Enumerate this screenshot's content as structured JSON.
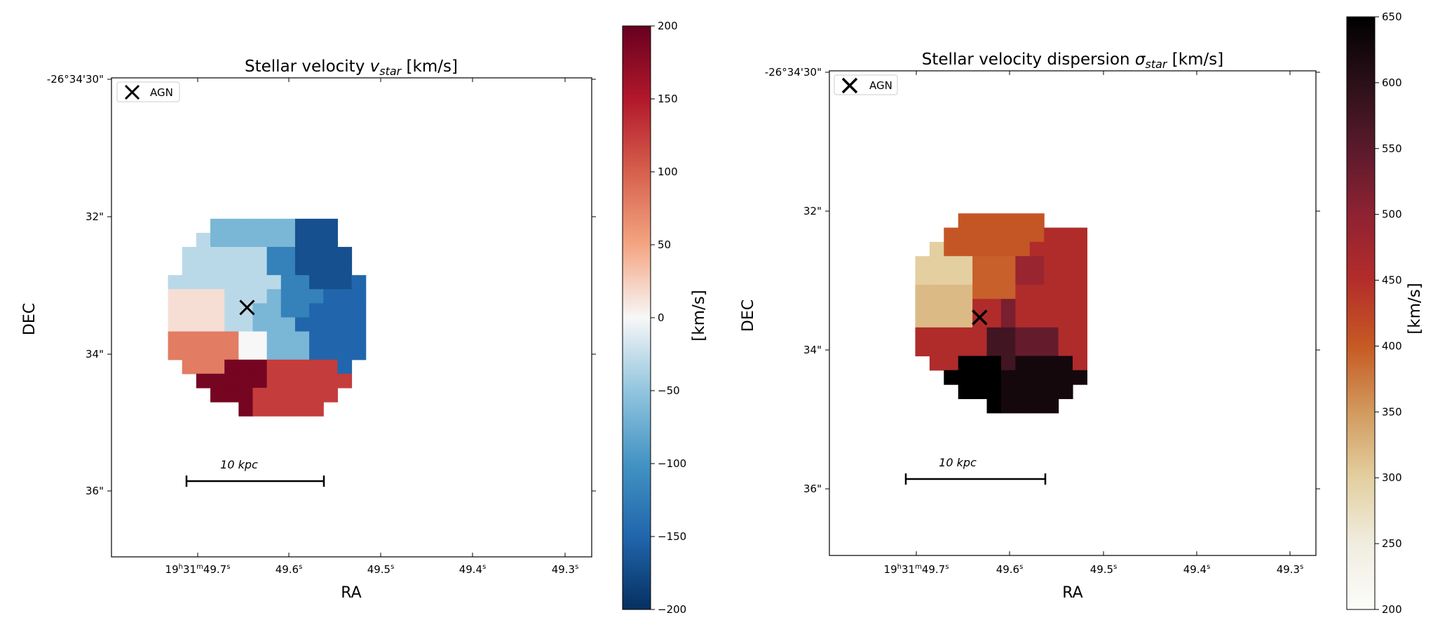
{
  "chart_data": [
    {
      "type": "heatmap",
      "title_prefix": "Stellar velocity ",
      "title_sym": "v",
      "title_sub": "star",
      "title_suffix": " [km/s]",
      "xlabel": "RA",
      "ylabel": "DEC",
      "xticks": [
        [
          "19",
          "h",
          "31",
          "m",
          "49.7",
          "s"
        ],
        [
          "49.6",
          "s"
        ],
        [
          "49.5",
          "s"
        ],
        [
          "49.4",
          "s"
        ],
        [
          "49.3",
          "s"
        ]
      ],
      "yticks": [
        "-26°34'30\"",
        "32\"",
        "34\"",
        "36\""
      ],
      "legend": "AGN",
      "scalebar_label": "10 kpc",
      "colorbar": {
        "label": "[km/s]",
        "range": [
          -200,
          200
        ],
        "ticks": [
          "200",
          "150",
          "100",
          "50",
          "0",
          "−50",
          "−100",
          "−150",
          "−200"
        ],
        "colormap": "RdBu_r"
      },
      "grid_x0": 4,
      "grid_y0": 9,
      "grid": [
        [
          null,
          null,
          null,
          null,
          null,
          null,
          null,
          null,
          null,
          null,
          null,
          null,
          null,
          null
        ],
        [
          null,
          null,
          null,
          -65,
          -65,
          -65,
          -65,
          -65,
          -65,
          -170,
          -170,
          -170,
          null,
          null
        ],
        [
          null,
          null,
          -30,
          -65,
          -65,
          -65,
          -65,
          -65,
          -65,
          -170,
          -170,
          -170,
          null,
          null
        ],
        [
          null,
          -30,
          -30,
          -30,
          -30,
          -30,
          -30,
          -120,
          -120,
          -170,
          -170,
          -170,
          -170,
          null
        ],
        [
          null,
          -30,
          -30,
          -30,
          -30,
          -30,
          -30,
          -120,
          -120,
          -170,
          -170,
          -170,
          -170,
          null
        ],
        [
          -30,
          -30,
          -30,
          -30,
          -30,
          -30,
          -30,
          -30,
          -120,
          -120,
          -170,
          -170,
          -170,
          -150
        ],
        [
          15,
          15,
          15,
          15,
          -30,
          -30,
          -30,
          -65,
          -120,
          -120,
          -120,
          -150,
          -150,
          -150
        ],
        [
          15,
          15,
          15,
          15,
          -30,
          -30,
          -65,
          -65,
          -120,
          -120,
          -150,
          -150,
          -150,
          -150
        ],
        [
          15,
          15,
          15,
          15,
          -30,
          -30,
          -65,
          -65,
          -65,
          -150,
          -150,
          -150,
          -150,
          -150
        ],
        [
          80,
          80,
          80,
          80,
          80,
          0,
          0,
          -65,
          -65,
          -65,
          -150,
          -150,
          -150,
          -150
        ],
        [
          80,
          80,
          80,
          80,
          80,
          0,
          0,
          -65,
          -65,
          -65,
          -150,
          -150,
          -150,
          -150
        ],
        [
          null,
          80,
          80,
          80,
          190,
          190,
          190,
          125,
          125,
          125,
          125,
          125,
          -150,
          null
        ],
        [
          null,
          null,
          190,
          190,
          190,
          190,
          190,
          125,
          125,
          125,
          125,
          125,
          125,
          null
        ],
        [
          null,
          null,
          null,
          190,
          190,
          190,
          125,
          125,
          125,
          125,
          125,
          125,
          null,
          null
        ],
        [
          null,
          null,
          null,
          null,
          null,
          190,
          125,
          125,
          125,
          125,
          125,
          null,
          null,
          null
        ]
      ],
      "agn": [
        5.6,
        7.3
      ]
    },
    {
      "type": "heatmap",
      "title_prefix": "Stellar velocity dispersion ",
      "title_sym": "σ",
      "title_sub": "star",
      "title_suffix": " [km/s]",
      "xlabel": "RA",
      "ylabel": "DEC",
      "xticks": [
        [
          "19",
          "h",
          "31",
          "m",
          "49.7",
          "s"
        ],
        [
          "49.6",
          "s"
        ],
        [
          "49.5",
          "s"
        ],
        [
          "49.4",
          "s"
        ],
        [
          "49.3",
          "s"
        ]
      ],
      "yticks": [
        "-26°34'30\"",
        "32\"",
        "34\"",
        "36\""
      ],
      "legend": "AGN",
      "scalebar_label": "10 kpc",
      "colorbar": {
        "label": "[km/s]",
        "range": [
          200,
          650
        ],
        "ticks": [
          "650",
          "600",
          "550",
          "500",
          "450",
          "400",
          "350",
          "300",
          "250",
          "200"
        ],
        "colormap": "gist_heat_r-like"
      },
      "grid_x0": 4,
      "grid_y0": 9,
      "grid": [
        [
          null,
          null,
          null,
          null,
          null,
          null,
          null,
          null,
          null,
          null,
          null,
          null,
          null,
          null
        ],
        [
          null,
          null,
          null,
          null,
          null,
          405,
          405,
          405,
          405,
          405,
          405,
          null,
          null,
          null
        ],
        [
          null,
          null,
          null,
          null,
          405,
          405,
          405,
          405,
          405,
          405,
          405,
          455,
          455,
          455
        ],
        [
          null,
          null,
          null,
          300,
          405,
          405,
          405,
          405,
          405,
          405,
          455,
          455,
          455,
          455
        ],
        [
          null,
          null,
          300,
          300,
          300,
          300,
          395,
          395,
          395,
          485,
          485,
          455,
          455,
          455
        ],
        [
          null,
          null,
          300,
          300,
          300,
          300,
          395,
          395,
          395,
          485,
          485,
          455,
          455,
          455
        ],
        [
          null,
          null,
          320,
          320,
          320,
          320,
          395,
          395,
          395,
          455,
          455,
          455,
          455,
          455
        ],
        [
          null,
          null,
          320,
          320,
          320,
          320,
          455,
          455,
          520,
          455,
          455,
          455,
          455,
          455
        ],
        [
          null,
          null,
          320,
          320,
          320,
          320,
          455,
          455,
          520,
          455,
          455,
          455,
          455,
          455
        ],
        [
          null,
          null,
          455,
          455,
          455,
          455,
          455,
          575,
          575,
          540,
          540,
          540,
          455,
          455
        ],
        [
          null,
          null,
          455,
          455,
          455,
          455,
          455,
          575,
          575,
          540,
          540,
          540,
          455,
          455
        ],
        [
          null,
          null,
          null,
          455,
          455,
          650,
          650,
          650,
          575,
          625,
          625,
          625,
          625,
          455
        ],
        [
          null,
          null,
          null,
          null,
          650,
          650,
          650,
          650,
          625,
          625,
          625,
          625,
          625,
          625
        ],
        [
          null,
          null,
          null,
          null,
          null,
          650,
          650,
          650,
          625,
          625,
          625,
          625,
          625,
          null
        ],
        [
          null,
          null,
          null,
          null,
          null,
          null,
          null,
          650,
          625,
          625,
          625,
          625,
          null,
          null
        ]
      ],
      "agn": [
        6.5,
        8.3
      ]
    }
  ]
}
